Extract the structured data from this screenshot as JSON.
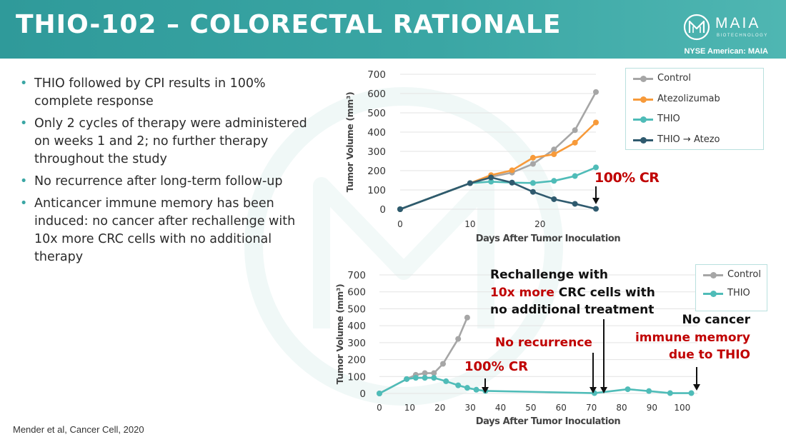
{
  "header": {
    "title": "THIO-102 – COLORECTAL RATIONALE",
    "logo_name": "MAIA",
    "logo_sub": "BIOTECHNOLOGY",
    "exchange": "NYSE American: MAIA"
  },
  "colors": {
    "header": "#3aa6a4",
    "control": "#a6a6a6",
    "atezolizumab": "#f79a3a",
    "thio": "#4fbcb8",
    "thio_atezo": "#2f5a6e",
    "annotation_red": "#c00000"
  },
  "bullets": [
    "THIO followed by CPI results in 100% complete response",
    "Only 2 cycles of therapy were administered on weeks 1 and 2; no further therapy throughout the study",
    "No recurrence after long-term follow-up",
    "Anticancer immune memory has been induced: no cancer after rechallenge with 10x more CRC cells with no additional therapy"
  ],
  "citation": "Mender et al, Cancer Cell, 2020",
  "annotations": {
    "top_cr": "100% CR",
    "bottom_cr": "100% CR",
    "no_recurrence": "No recurrence",
    "rechallenge_line1": "Rechallenge with",
    "rechallenge_red": "10x more",
    "rechallenge_line2_rest": " CRC cells with",
    "rechallenge_line3": "no additional treatment",
    "no_cancer": "No cancer",
    "immune_memory_line1": "immune memory",
    "immune_memory_line2": "due to THIO"
  },
  "chart_data": [
    {
      "type": "line",
      "xlabel": "Days After Tumor Inoculation",
      "ylabel": "Tumor Volume (mm³)",
      "xlim": [
        0,
        28
      ],
      "ylim": [
        0,
        700
      ],
      "xticks": [
        0,
        10,
        20
      ],
      "yticks": [
        0,
        100,
        200,
        300,
        400,
        500,
        600,
        700
      ],
      "grid": true,
      "legend": "right",
      "series": [
        {
          "name": "Control",
          "color": "#a6a6a6",
          "x": [
            0,
            10,
            13,
            16,
            19,
            22,
            25,
            28
          ],
          "y": [
            0,
            135,
            168,
            190,
            235,
            310,
            410,
            608
          ]
        },
        {
          "name": "Atezolizumab",
          "color": "#f79a3a",
          "x": [
            0,
            10,
            13,
            16,
            19,
            22,
            25,
            28
          ],
          "y": [
            0,
            135,
            177,
            202,
            267,
            285,
            345,
            450
          ]
        },
        {
          "name": "THIO",
          "color": "#4fbcb8",
          "x": [
            0,
            10,
            13,
            16,
            19,
            22,
            25,
            28
          ],
          "y": [
            0,
            135,
            143,
            138,
            136,
            147,
            172,
            217
          ]
        },
        {
          "name": "THIO → Atezo",
          "color": "#2f5a6e",
          "x": [
            0,
            10,
            13,
            16,
            19,
            22,
            25,
            28
          ],
          "y": [
            0,
            135,
            165,
            138,
            90,
            52,
            28,
            2
          ]
        }
      ]
    },
    {
      "type": "line",
      "xlabel": "Days After Tumor Inoculation",
      "ylabel": "Tumor Volume (mm³)",
      "xlim": [
        0,
        105
      ],
      "ylim": [
        0,
        700
      ],
      "xticks": [
        0,
        10,
        20,
        30,
        40,
        50,
        60,
        70,
        80,
        90,
        100
      ],
      "yticks": [
        0,
        100,
        200,
        300,
        400,
        500,
        600,
        700
      ],
      "grid": true,
      "legend": "top-right",
      "series": [
        {
          "name": "Control",
          "color": "#a6a6a6",
          "x": [
            0,
            9,
            12,
            15,
            18,
            21,
            26,
            29
          ],
          "y": [
            0,
            85,
            110,
            120,
            120,
            175,
            322,
            448
          ]
        },
        {
          "name": "THIO",
          "color": "#4fbcb8",
          "x": [
            0,
            9,
            12,
            15,
            18,
            22,
            26,
            29,
            32,
            35,
            71,
            82,
            89,
            96,
            103
          ],
          "y": [
            0,
            85,
            92,
            92,
            92,
            72,
            48,
            33,
            22,
            15,
            2,
            25,
            14,
            2,
            2
          ]
        }
      ]
    }
  ]
}
